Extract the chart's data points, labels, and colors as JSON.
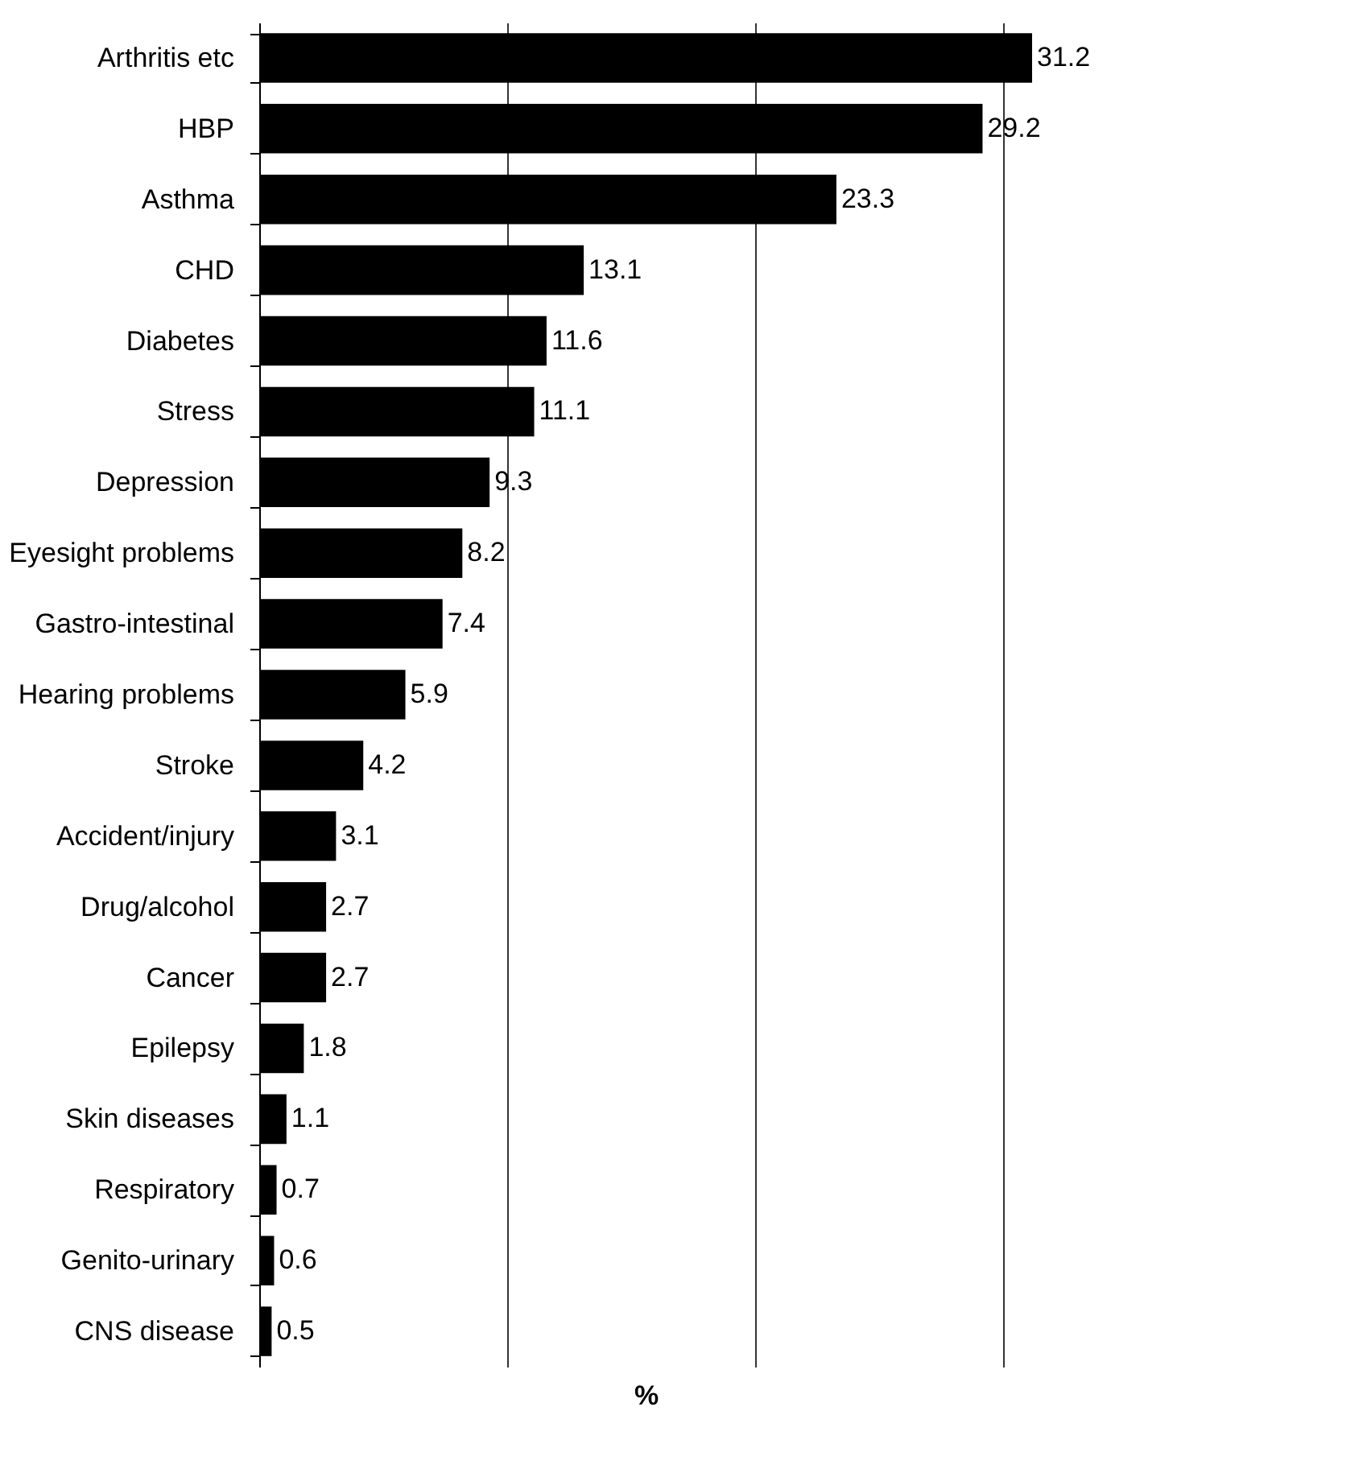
{
  "chart_data": {
    "type": "bar",
    "orientation": "horizontal",
    "xlabel": "%",
    "categories": [
      "Arthritis etc",
      "HBP",
      "Asthma",
      "CHD",
      "Diabetes",
      "Stress",
      "Depression",
      "Eyesight problems",
      "Gastro-intestinal",
      "Hearing problems",
      "Stroke",
      "Accident/injury",
      "Drug/alcohol",
      "Cancer",
      "Epilepsy",
      "Skin diseases",
      "Respiratory",
      "Genito-urinary",
      "CNS disease"
    ],
    "values": [
      31.2,
      29.2,
      23.3,
      13.1,
      11.6,
      11.1,
      9.3,
      8.2,
      7.4,
      5.9,
      4.2,
      3.1,
      2.7,
      2.7,
      1.8,
      1.1,
      0.7,
      0.6,
      0.5
    ],
    "color": "#000000",
    "xticks": [
      {
        "value": 0,
        "label": null
      },
      {
        "value": 10,
        "label": null
      },
      {
        "value": 20,
        "label": null
      },
      {
        "value": 30,
        "label": null
      }
    ],
    "grid": "x",
    "data_labels": true,
    "tick_labels": "y"
  }
}
